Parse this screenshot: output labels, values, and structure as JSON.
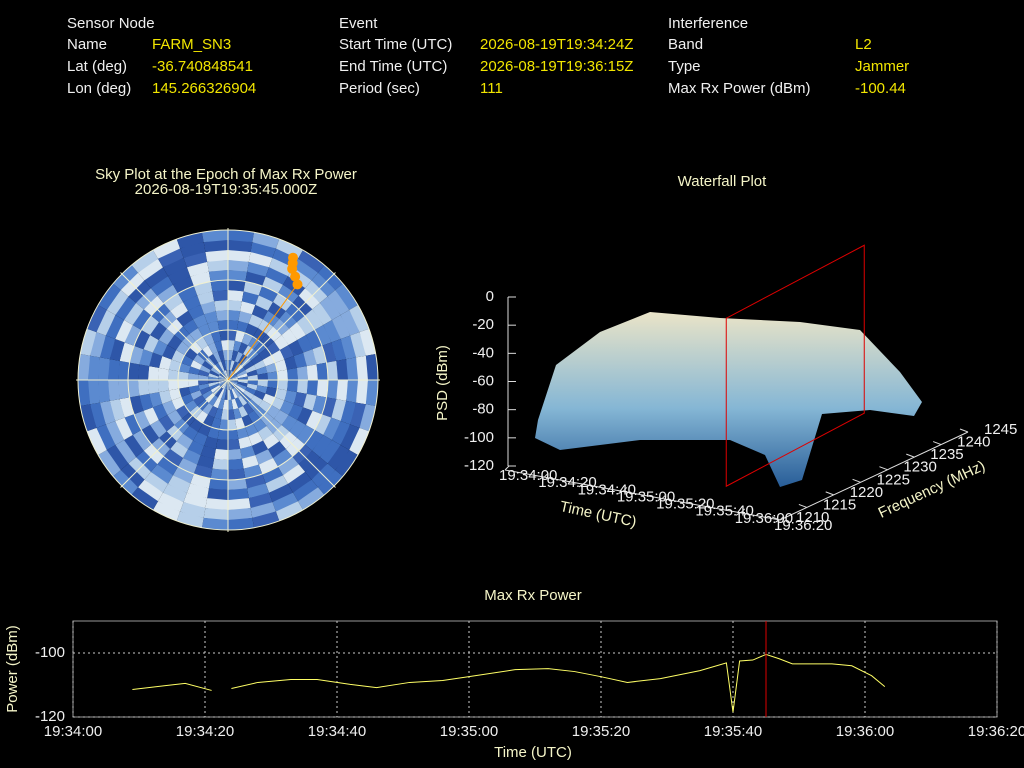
{
  "info": [
    {
      "title": "Sensor Node",
      "rows": [
        [
          "Name",
          "FARM_SN3"
        ],
        [
          "Lat (deg)",
          "-36.740848541"
        ],
        [
          "Lon (deg)",
          "145.266326904"
        ]
      ]
    },
    {
      "title": "Event",
      "rows": [
        [
          "Start Time (UTC)",
          "2026-08-19T19:34:24Z"
        ],
        [
          "End Time (UTC)",
          "2026-08-19T19:36:15Z"
        ],
        [
          "Period (sec)",
          "111"
        ]
      ]
    },
    {
      "title": "Interference",
      "rows": [
        [
          "Band",
          "L2"
        ],
        [
          "Type",
          "Jammer"
        ],
        [
          "Max Rx Power (dBm)",
          "-100.44"
        ]
      ]
    }
  ],
  "chart_data": [
    {
      "type": "polar",
      "title": "Sky Plot at the Epoch of Max Rx Power",
      "subtitle": "2026-08-19T19:35:45.000Z",
      "color": "#ff9900",
      "azimuth": [
        28,
        29,
        30,
        33,
        36
      ],
      "elevation": [
        8,
        11,
        14,
        17,
        20
      ]
    },
    {
      "type": "surface3d",
      "title": "Waterfall Plot",
      "xlabel": "Time (UTC)",
      "ylabel": "Frequency (MHz)",
      "zlabel": "PSD (dBm)",
      "xlim": [
        "19:34:00",
        "19:36:20"
      ],
      "xticks": [
        "19:34:00",
        "19:34:20",
        "19:34:40",
        "19:35:00",
        "19:35:20",
        "19:35:40",
        "19:36:00",
        "19:36:20"
      ],
      "ylim": [
        1210,
        1245
      ],
      "yticks": [
        1210,
        1215,
        1220,
        1225,
        1230,
        1235,
        1240,
        1245
      ],
      "zlim": [
        -120,
        0
      ],
      "zticks": [
        0,
        -20,
        -40,
        -60,
        -80,
        -100,
        -120
      ],
      "marker_x": "19:35:45",
      "marker_color": "#dd0000"
    },
    {
      "type": "line",
      "title": "Max Rx Power",
      "xlabel": "Time (UTC)",
      "ylabel": "Power (dBm)",
      "color": "#ffff66",
      "xlim": [
        "19:34:00",
        "19:36:20"
      ],
      "xticks": [
        "19:34:00",
        "19:34:20",
        "19:34:40",
        "19:35:00",
        "19:35:20",
        "19:35:40",
        "19:36:00",
        "19:36:20"
      ],
      "ylim": [
        -120,
        -90
      ],
      "yticks": [
        -120,
        -100
      ],
      "grid": true,
      "marker_x": "19:35:45",
      "marker_color": "#dd0000",
      "x": [
        "19:34:09",
        "19:34:14",
        "19:34:17",
        "19:34:21",
        "19:34:22",
        "19:34:24",
        "19:34:28",
        "19:34:33",
        "19:34:37",
        "19:34:42",
        "19:34:46",
        "19:34:51",
        "19:34:56",
        "19:35:00",
        "19:35:07",
        "19:35:12",
        "19:35:16",
        "19:35:20",
        "19:35:24",
        "19:35:29",
        "19:35:35",
        "19:35:39",
        "19:35:40",
        "19:35:41",
        "19:35:43",
        "19:35:45",
        "19:35:47",
        "19:35:49",
        "19:35:55",
        "19:35:58",
        "19:36:01",
        "19:36:03"
      ],
      "values": [
        -111.4,
        -110.2,
        -109.5,
        -111.7,
        null,
        -111.1,
        -109.2,
        -108.3,
        -108.3,
        -109.8,
        -110.8,
        -109.2,
        -108.6,
        -107.4,
        -105.2,
        -104.9,
        -105.8,
        -107.4,
        -109.2,
        -108.0,
        -105.5,
        -103.1,
        -118.5,
        -102.5,
        -102.2,
        -100.44,
        -101.8,
        -103.4,
        -103.4,
        -104.0,
        -107.1,
        -110.5
      ]
    }
  ]
}
